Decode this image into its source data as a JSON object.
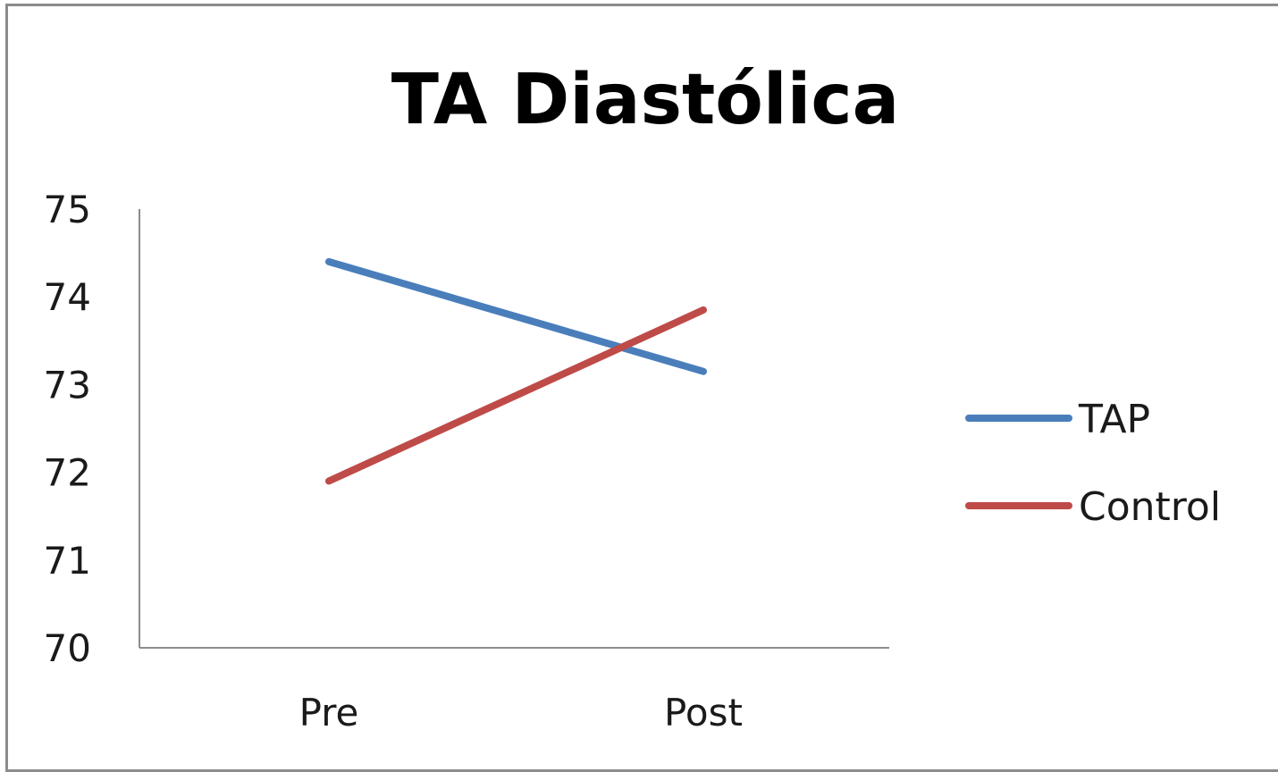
{
  "chart_data": {
    "type": "line",
    "title": "TA Diastólica",
    "xlabel": "",
    "ylabel": "",
    "categories": [
      "Pre",
      "Post"
    ],
    "ylim": [
      70,
      75
    ],
    "yticks": [
      70,
      71,
      72,
      73,
      74,
      75
    ],
    "grid": false,
    "legend_position": "right",
    "series": [
      {
        "name": "TAP",
        "values": [
          74.4,
          73.15
        ],
        "color": "#4a7ebb"
      },
      {
        "name": "Control",
        "values": [
          71.9,
          73.85
        ],
        "color": "#be4b48"
      }
    ]
  }
}
